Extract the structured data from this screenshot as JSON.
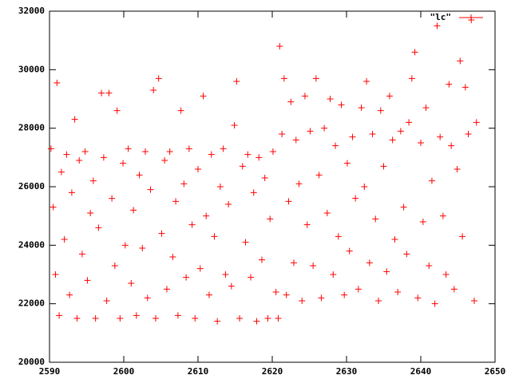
{
  "chart_data": {
    "type": "scatter",
    "xlim": [
      2590,
      2650
    ],
    "xticks": [
      2590,
      2600,
      2610,
      2620,
      2630,
      2640,
      2650
    ],
    "ylim": [
      20000,
      32000
    ],
    "yticks": [
      20000,
      22000,
      24000,
      26000,
      28000,
      30000,
      32000
    ],
    "legend": "top-right",
    "series": [
      {
        "name": "\"lc\"",
        "color": "#ff0000",
        "x": [
          2590.2,
          2590.5,
          2590.8,
          2591,
          2591.3,
          2591.6,
          2592,
          2592.3,
          2592.7,
          2593,
          2593.4,
          2593.7,
          2594,
          2594.4,
          2594.8,
          2595.1,
          2595.5,
          2595.9,
          2596.2,
          2596.6,
          2597,
          2597.3,
          2597.7,
          2598,
          2598.4,
          2598.8,
          2599.1,
          2599.5,
          2599.9,
          2600.2,
          2600.6,
          2601,
          2601.3,
          2601.7,
          2602.1,
          2602.5,
          2602.9,
          2603.2,
          2603.6,
          2604,
          2604.3,
          2604.7,
          2605.1,
          2605.5,
          2605.8,
          2606.2,
          2606.6,
          2607,
          2607.3,
          2607.7,
          2608.1,
          2608.4,
          2608.8,
          2609.2,
          2609.6,
          2610,
          2610.3,
          2610.7,
          2611.1,
          2611.5,
          2611.8,
          2612.2,
          2612.6,
          2613,
          2613.4,
          2613.7,
          2614.1,
          2614.5,
          2614.9,
          2615.2,
          2615.6,
          2616,
          2616.4,
          2616.7,
          2617.1,
          2617.5,
          2617.9,
          2618.2,
          2618.6,
          2619,
          2619.4,
          2619.7,
          2620.1,
          2620.5,
          2620.8,
          2621,
          2621.3,
          2621.6,
          2621.9,
          2622.2,
          2622.5,
          2622.9,
          2623.2,
          2623.6,
          2624,
          2624.4,
          2624.7,
          2625.1,
          2625.5,
          2625.9,
          2626.3,
          2626.6,
          2627,
          2627.4,
          2627.8,
          2628.2,
          2628.5,
          2628.9,
          2629.3,
          2629.7,
          2630.1,
          2630.4,
          2630.8,
          2631.2,
          2631.6,
          2632,
          2632.4,
          2632.7,
          2633.1,
          2633.5,
          2633.9,
          2634.3,
          2634.6,
          2635,
          2635.4,
          2635.8,
          2636.2,
          2636.5,
          2636.9,
          2637.3,
          2637.7,
          2638.1,
          2638.4,
          2638.8,
          2639.2,
          2639.6,
          2640,
          2640.3,
          2640.7,
          2641.1,
          2641.5,
          2641.9,
          2642.2,
          2642.6,
          2643,
          2643.4,
          2643.8,
          2644.1,
          2644.5,
          2644.9,
          2645.3,
          2645.6,
          2646,
          2646.4,
          2646.8,
          2647.2,
          2647.5
        ],
        "values": [
          27300,
          25300,
          23000,
          29550,
          21600,
          26500,
          24200,
          27100,
          22300,
          25800,
          28300,
          21500,
          26900,
          23700,
          27200,
          22800,
          25100,
          26200,
          21500,
          24600,
          29200,
          27000,
          22100,
          29200,
          25600,
          23300,
          28600,
          21500,
          26800,
          24000,
          27300,
          22700,
          25200,
          21600,
          26400,
          23900,
          27200,
          22200,
          25900,
          29300,
          21500,
          29700,
          24400,
          26900,
          22500,
          27200,
          23600,
          25500,
          21600,
          28600,
          26100,
          22900,
          27300,
          24700,
          21500,
          26600,
          23200,
          29100,
          25000,
          22300,
          27100,
          24300,
          21400,
          26000,
          27300,
          23000,
          25400,
          22600,
          28100,
          29600,
          21500,
          26700,
          24100,
          27100,
          22900,
          25800,
          21400,
          27000,
          23500,
          26300,
          21500,
          24900,
          27200,
          22400,
          21500,
          30800,
          27800,
          29700,
          22300,
          25500,
          28900,
          23400,
          27600,
          26100,
          22100,
          29100,
          24700,
          27900,
          23300,
          29700,
          26400,
          22200,
          28000,
          25100,
          29000,
          23000,
          27400,
          24300,
          28800,
          22300,
          26800,
          23800,
          27700,
          25600,
          22500,
          28700,
          26000,
          29600,
          23400,
          27800,
          24900,
          22100,
          28600,
          26700,
          23100,
          29100,
          27600,
          24200,
          22400,
          27900,
          25300,
          23700,
          28200,
          29700,
          30600,
          22200,
          27500,
          24800,
          28700,
          23300,
          26200,
          22000,
          31500,
          27700,
          25000,
          23000,
          29500,
          27400,
          22500,
          26600,
          30300,
          24300,
          29400,
          27800,
          31700,
          22100,
          28200
        ]
      }
    ]
  }
}
